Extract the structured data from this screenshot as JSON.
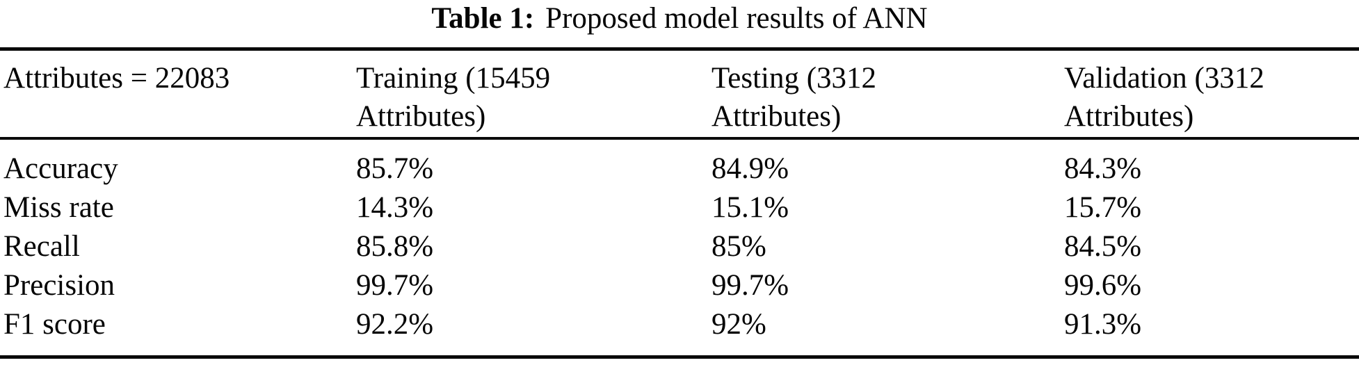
{
  "page": {
    "background_color": "#ffffff",
    "text_color": "#050505",
    "rule_color": "#0a0a0a"
  },
  "caption": {
    "label": "Table 1:",
    "text": "Proposed model results of ANN"
  },
  "table": {
    "columns": [
      {
        "header": "Attributes = 22083"
      },
      {
        "header": "Training (15459\nAttributes)"
      },
      {
        "header": "Testing (3312\nAttributes)"
      },
      {
        "header": "Validation (3312\nAttributes)"
      }
    ],
    "rows": [
      {
        "metric": "Accuracy",
        "training": "85.7%",
        "testing": "84.9%",
        "validation": "84.3%"
      },
      {
        "metric": "Miss rate",
        "training": "14.3%",
        "testing": "15.1%",
        "validation": "15.7%"
      },
      {
        "metric": "Recall",
        "training": "85.8%",
        "testing": "85%",
        "validation": "84.5%"
      },
      {
        "metric": "Precision",
        "training": "99.7%",
        "testing": "99.7%",
        "validation": "99.6%"
      },
      {
        "metric": "F1 score",
        "training": "92.2%",
        "testing": "92%",
        "validation": "91.3%"
      }
    ]
  }
}
